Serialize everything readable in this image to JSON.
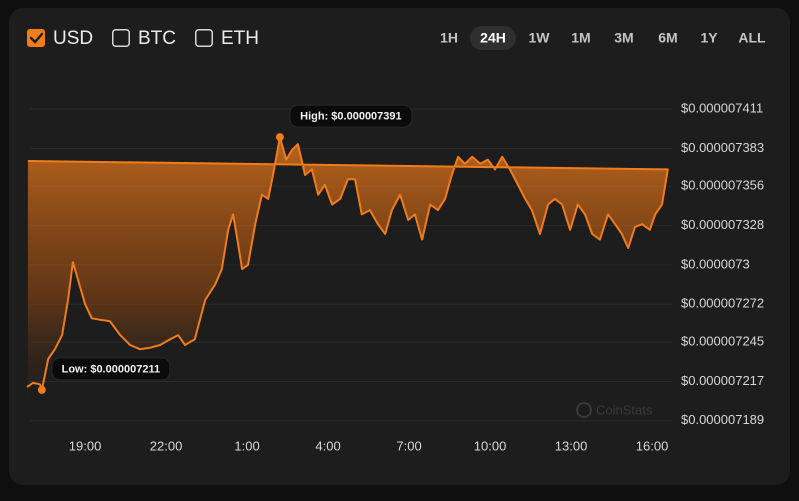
{
  "controls": {
    "currencies": [
      {
        "label": "USD",
        "checked": true
      },
      {
        "label": "BTC",
        "checked": false
      },
      {
        "label": "ETH",
        "checked": false
      }
    ],
    "ranges": [
      "1H",
      "24H",
      "1W",
      "1M",
      "3M",
      "6M",
      "1Y",
      "ALL"
    ],
    "selected_range": "24H"
  },
  "chart_data": {
    "type": "area",
    "color": "#f07c1c",
    "grid": true,
    "high_label": "High: $0.000007391",
    "low_label": "Low: $0.000007211",
    "watermark": "CoinStats",
    "x": [
      "16:51",
      "17:04",
      "17:20",
      "17:24",
      "17:38",
      "17:53",
      "18:09",
      "18:22",
      "18:33",
      "18:44",
      "19:00",
      "19:15",
      "19:33",
      "19:55",
      "20:18",
      "20:40",
      "21:02",
      "21:24",
      "21:47",
      "22:09",
      "22:27",
      "22:42",
      "23:04",
      "23:27",
      "23:49",
      "00:04",
      "00:18",
      "00:29",
      "00:40",
      "00:49",
      "01:02",
      "01:18",
      "01:33",
      "01:47",
      "02:00",
      "02:13",
      "02:27",
      "02:40",
      "02:53",
      "03:09",
      "03:24",
      "03:38",
      "03:53",
      "04:09",
      "04:27",
      "04:44",
      "05:00",
      "05:15",
      "05:33",
      "05:51",
      "06:07",
      "06:22",
      "06:40",
      "06:58",
      "07:13",
      "07:29",
      "07:47",
      "08:04",
      "08:20",
      "08:35",
      "08:49",
      "09:04",
      "09:20",
      "09:38",
      "09:55",
      "10:11",
      "10:27",
      "10:44",
      "11:02",
      "11:18",
      "11:33",
      "11:51",
      "12:09",
      "12:24",
      "12:40",
      "12:58",
      "13:15",
      "13:31",
      "13:47",
      "14:04",
      "14:22",
      "14:38",
      "14:53",
      "15:07",
      "15:22",
      "15:38",
      "15:55",
      "16:07",
      "16:22",
      "16:35",
      "16:53"
    ],
    "values": [
      7.213e-06,
      7.216e-06,
      7.215e-06,
      7.211e-06,
      7.233e-06,
      7.24e-06,
      7.25e-06,
      7.275e-06,
      7.302e-06,
      7.29e-06,
      7.272e-06,
      7.262e-06,
      7.261e-06,
      7.26e-06,
      7.25e-06,
      7.243e-06,
      7.24e-06,
      7.241e-06,
      7.243e-06,
      7.247e-06,
      7.25e-06,
      7.243e-06,
      7.247e-06,
      7.275e-06,
      7.286e-06,
      7.297e-06,
      7.325e-06,
      7.336e-06,
      7.315e-06,
      7.297e-06,
      7.3e-06,
      7.329e-06,
      7.35e-06,
      7.347e-06,
      7.368e-06,
      7.391e-06,
      7.375e-06,
      7.382e-06,
      7.386e-06,
      7.364e-06,
      7.368e-06,
      7.35e-06,
      7.357e-06,
      7.343e-06,
      7.347e-06,
      7.361e-06,
      7.361e-06,
      7.336e-06,
      7.339e-06,
      7.329e-06,
      7.322e-06,
      7.339e-06,
      7.35e-06,
      7.332e-06,
      7.336e-06,
      7.318e-06,
      7.343e-06,
      7.339e-06,
      7.347e-06,
      7.364e-06,
      7.377e-06,
      7.372e-06,
      7.377e-06,
      7.372e-06,
      7.375e-06,
      7.368e-06,
      7.377e-06,
      7.368e-06,
      7.357e-06,
      7.347e-06,
      7.339e-06,
      7.322e-06,
      7.343e-06,
      7.347e-06,
      7.343e-06,
      7.325e-06,
      7.343e-06,
      7.336e-06,
      7.322e-06,
      7.318e-06,
      7.336e-06,
      7.329e-06,
      7.322e-06,
      7.312e-06,
      7.327e-06,
      7.329e-06,
      7.325e-06,
      7.336e-06,
      7.343e-06,
      7.368e-06,
      7.374e-06
    ],
    "ylim": [
      7.186e-06,
      7.421e-06
    ],
    "yticks": [
      {
        "value": 7.411e-06,
        "label": "$0.000007411"
      },
      {
        "value": 7.383e-06,
        "label": "$0.000007383"
      },
      {
        "value": 7.356e-06,
        "label": "$0.000007356"
      },
      {
        "value": 7.328e-06,
        "label": "$0.000007328"
      },
      {
        "value": 7.3e-06,
        "label": "$0.0000073"
      },
      {
        "value": 7.272e-06,
        "label": "$0.000007272"
      },
      {
        "value": 7.245e-06,
        "label": "$0.000007245"
      },
      {
        "value": 7.217e-06,
        "label": "$0.000007217"
      },
      {
        "value": 7.189e-06,
        "label": "$0.000007189"
      }
    ],
    "xticks": [
      "19:00",
      "22:00",
      "1:00",
      "4:00",
      "7:00",
      "10:00",
      "13:00",
      "16:00"
    ]
  }
}
